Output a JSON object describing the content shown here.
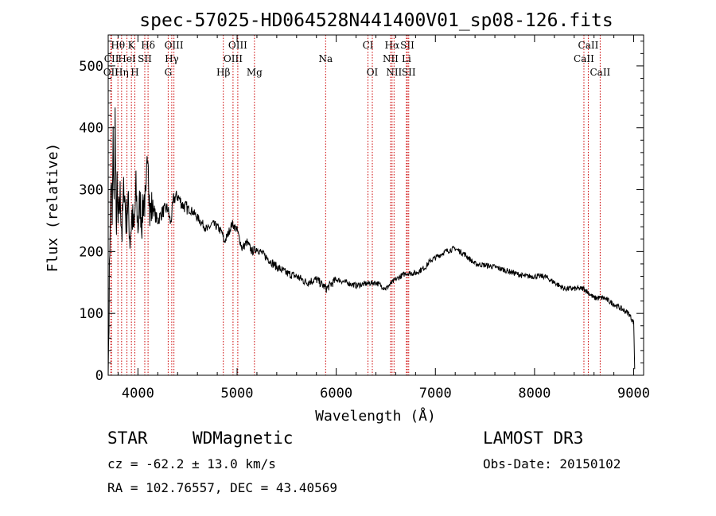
{
  "chart_data": {
    "type": "line",
    "title": "spec-57025-HD064528N441400V01_sp08-126.fits",
    "xlabel": "Wavelength (Å)",
    "ylabel": "Flux (relative)",
    "xlim": [
      3700,
      9100
    ],
    "ylim": [
      0,
      550
    ],
    "xticks": [
      4000,
      5000,
      6000,
      7000,
      8000,
      9000
    ],
    "xtick_labels": [
      "4000",
      "5000",
      "6000",
      "7000",
      "8000",
      "9000"
    ],
    "yticks": [
      0,
      100,
      200,
      300,
      400,
      500
    ],
    "ytick_labels": [
      "0",
      "100",
      "200",
      "300",
      "400",
      "500"
    ],
    "grid": false,
    "series": [
      {
        "name": "spectrum",
        "x": [
          3700,
          3720,
          3730,
          3740,
          3750,
          3760,
          3770,
          3780,
          3790,
          3800,
          3820,
          3840,
          3860,
          3880,
          3900,
          3920,
          3940,
          3960,
          3980,
          4000,
          4020,
          4040,
          4060,
          4080,
          4100,
          4120,
          4150,
          4180,
          4200,
          4250,
          4300,
          4330,
          4360,
          4400,
          4450,
          4500,
          4550,
          4600,
          4650,
          4700,
          4750,
          4800,
          4850,
          4870,
          4900,
          4950,
          5000,
          5050,
          5100,
          5150,
          5200,
          5300,
          5400,
          5500,
          5600,
          5700,
          5800,
          5900,
          6000,
          6100,
          6200,
          6300,
          6400,
          6500,
          6563,
          6600,
          6650,
          6700,
          6750,
          6800,
          6850,
          6900,
          6950,
          7000,
          7100,
          7200,
          7300,
          7400,
          7500,
          7600,
          7700,
          7800,
          7900,
          8000,
          8100,
          8200,
          8300,
          8400,
          8500,
          8600,
          8700,
          8800,
          8900,
          8950,
          9000,
          9010
        ],
        "y": [
          0,
          260,
          320,
          240,
          380,
          270,
          420,
          230,
          300,
          240,
          290,
          230,
          310,
          250,
          280,
          220,
          260,
          230,
          300,
          240,
          280,
          250,
          290,
          270,
          380,
          260,
          275,
          255,
          250,
          265,
          270,
          245,
          285,
          290,
          275,
          270,
          265,
          255,
          245,
          235,
          245,
          240,
          230,
          215,
          225,
          245,
          235,
          205,
          215,
          200,
          205,
          190,
          175,
          165,
          160,
          150,
          155,
          140,
          155,
          150,
          145,
          148,
          150,
          140,
          150,
          155,
          160,
          165,
          165,
          165,
          170,
          175,
          185,
          190,
          200,
          205,
          195,
          180,
          178,
          175,
          170,
          165,
          160,
          160,
          160,
          150,
          140,
          140,
          140,
          125,
          125,
          115,
          105,
          100,
          85,
          10
        ]
      }
    ],
    "lines": [
      {
        "label": "Hθ",
        "x": 3798,
        "row": 1
      },
      {
        "label": "CII",
        "x": 3733,
        "row": 2
      },
      {
        "label": "OII",
        "x": 3727,
        "row": 3
      },
      {
        "label": "K",
        "x": 3934,
        "row": 1
      },
      {
        "label": "HeI",
        "x": 3889,
        "row": 2
      },
      {
        "label": "Hη",
        "x": 3835,
        "row": 3
      },
      {
        "label": "SII",
        "x": 4069,
        "row": 2
      },
      {
        "label": "H",
        "x": 3969,
        "row": 3
      },
      {
        "label": "Hδ",
        "x": 4102,
        "row": 1
      },
      {
        "label": "OIII",
        "x": 4363,
        "row": 1
      },
      {
        "label": "Hγ",
        "x": 4341,
        "row": 2
      },
      {
        "label": "G",
        "x": 4305,
        "row": 3
      },
      {
        "label": "OIII",
        "x": 5007,
        "row": 1
      },
      {
        "label": "OIII",
        "x": 4959,
        "row": 2
      },
      {
        "label": "Hβ",
        "x": 4861,
        "row": 3
      },
      {
        "label": "Mg",
        "x": 5175,
        "row": 3
      },
      {
        "label": "Na",
        "x": 5893,
        "row": 2
      },
      {
        "label": "CI",
        "x": 6320,
        "row": 1
      },
      {
        "label": "OI",
        "x": 6364,
        "row": 3
      },
      {
        "label": "Hα",
        "x": 6563,
        "row": 1
      },
      {
        "label": "SII",
        "x": 6717,
        "row": 1
      },
      {
        "label": "NII",
        "x": 6548,
        "row": 2
      },
      {
        "label": "Li",
        "x": 6708,
        "row": 2
      },
      {
        "label": "NII",
        "x": 6583,
        "row": 3
      },
      {
        "label": "SII",
        "x": 6731,
        "row": 3
      },
      {
        "label": "CaII",
        "x": 8542,
        "row": 1
      },
      {
        "label": "CaII",
        "x": 8498,
        "row": 2
      },
      {
        "label": "CaII",
        "x": 8662,
        "row": 3
      }
    ],
    "line_color": "#cc0000",
    "spectrum_color": "#000000"
  },
  "info": {
    "class_label": "STAR",
    "subclass": "WDMagnetic",
    "survey": "LAMOST DR3",
    "redshift": "cz = -62.2 ± 13.0 km/s",
    "obs_date": "Obs-Date: 20150102",
    "coords": "RA = 102.76557, DEC =  43.40569"
  }
}
